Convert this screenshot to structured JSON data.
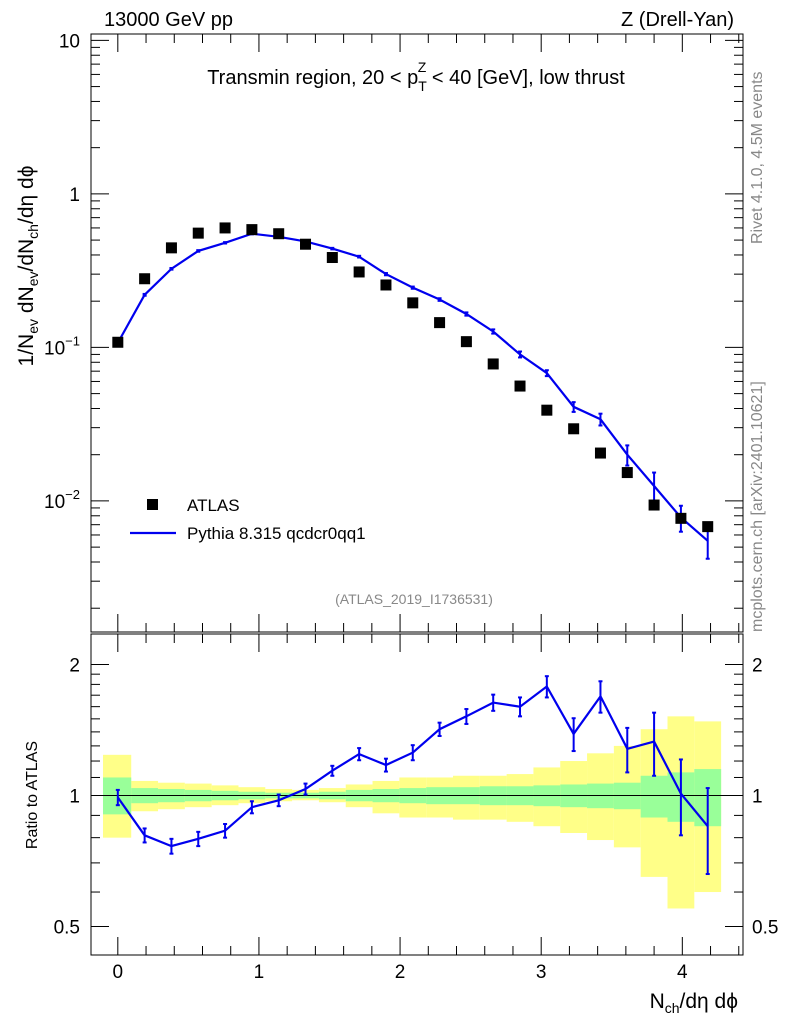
{
  "header": {
    "left": "13000 GeV pp",
    "right": "Z (Drell-Yan)"
  },
  "side": {
    "rivet": "Rivet 4.1.0,  4.5M events",
    "mcplots": "mcplots.cern.ch [arXiv:2401.10621]"
  },
  "colors": {
    "data": "#000000",
    "mc": "#0000ee",
    "band_inner": "#99ff99",
    "band_outer": "#ffff88"
  },
  "chart_data": [
    {
      "type": "scatter",
      "name": "main",
      "title_parts": {
        "before": "Transmin region, 20 < p",
        "sub": "T",
        "sup": "Z",
        "after": " < 40 [GeV], low thrust"
      },
      "ylabel_parts": {
        "a": "1/N",
        "a_sub": "ev",
        "b": " dN",
        "b_sub": "ev",
        "c": "/dN",
        "c_sub": "ch",
        "d": "/dη dϕ"
      },
      "yscale": "log",
      "ylim": [
        0.0014,
        11
      ],
      "yticks": [
        {
          "value": 0.01,
          "base": "10",
          "exp": "−2"
        },
        {
          "value": 0.1,
          "base": "10",
          "exp": "−1"
        },
        {
          "value": 1,
          "base": "1",
          "exp": ""
        },
        {
          "value": 10,
          "base": "10",
          "exp": ""
        }
      ],
      "xlim": [
        -0.19,
        4.43
      ],
      "legend": {
        "position": "bottom-left",
        "data_label": "ATLAS",
        "mc_label": "Pythia 8.315 qcdcr0qq1"
      },
      "watermark": "(ATLAS_2019_I1736531)",
      "x": [
        0,
        0.19,
        0.38,
        0.57,
        0.76,
        0.95,
        1.14,
        1.33,
        1.52,
        1.71,
        1.9,
        2.09,
        2.28,
        2.47,
        2.66,
        2.85,
        3.04,
        3.23,
        3.42,
        3.61,
        3.8,
        3.99,
        4.18
      ],
      "series": [
        {
          "name": "ATLAS",
          "style": "markers",
          "values": [
            0.108,
            0.28,
            0.445,
            0.555,
            0.6,
            0.585,
            0.55,
            0.47,
            0.385,
            0.31,
            0.255,
            0.195,
            0.145,
            0.109,
            0.078,
            0.056,
            0.039,
            0.0295,
            0.0205,
            0.0153,
            0.0094,
            0.0077,
            0.0068
          ]
        },
        {
          "name": "Pythia 8.315 qcdcr0qq1",
          "style": "line",
          "values": [
            0.107,
            0.22,
            0.325,
            0.425,
            0.48,
            0.55,
            0.525,
            0.49,
            0.44,
            0.39,
            0.3,
            0.245,
            0.205,
            0.165,
            0.127,
            0.09,
            0.068,
            0.041,
            0.034,
            0.02,
            0.0125,
            0.0078,
            0.0055
          ],
          "err_low": [
            0.002,
            0.003,
            0.004,
            0.005,
            0.005,
            0.005,
            0.005,
            0.005,
            0.005,
            0.005,
            0.005,
            0.004,
            0.004,
            0.004,
            0.004,
            0.004,
            0.003,
            0.003,
            0.003,
            0.003,
            0.003,
            0.0015,
            0.0013
          ],
          "err_high": [
            0.002,
            0.003,
            0.004,
            0.005,
            0.005,
            0.005,
            0.005,
            0.005,
            0.005,
            0.005,
            0.005,
            0.004,
            0.004,
            0.004,
            0.004,
            0.004,
            0.003,
            0.003,
            0.003,
            0.003,
            0.0028,
            0.0015,
            0.0015
          ]
        }
      ]
    },
    {
      "type": "line",
      "name": "ratio",
      "ylabel": "Ratio to ATLAS",
      "yscale": "log",
      "ylim": [
        0.43,
        2.35
      ],
      "yticks": [
        {
          "value": 0.5,
          "label": "0.5"
        },
        {
          "value": 1,
          "label": "1"
        },
        {
          "value": 2,
          "label": "2"
        }
      ],
      "xlim": [
        -0.19,
        4.43
      ],
      "xlabel_parts": {
        "a": "N",
        "a_sub": "ch",
        "b": "/dη dϕ"
      },
      "xticks": [
        0,
        1,
        2,
        3,
        4
      ],
      "x": [
        0,
        0.19,
        0.38,
        0.57,
        0.76,
        0.95,
        1.14,
        1.33,
        1.52,
        1.71,
        1.9,
        2.09,
        2.28,
        2.47,
        2.66,
        2.85,
        3.04,
        3.23,
        3.42,
        3.61,
        3.8,
        3.99,
        4.18
      ],
      "band_edges": [
        -0.105,
        0.095,
        0.285,
        0.475,
        0.665,
        0.855,
        1.045,
        1.235,
        1.425,
        1.615,
        1.805,
        1.995,
        2.185,
        2.375,
        2.565,
        2.755,
        2.945,
        3.135,
        3.325,
        3.515,
        3.705,
        3.895,
        4.085,
        4.275
      ],
      "band_inner": [
        [
          0.905,
          1.1
        ],
        [
          0.96,
          1.04
        ],
        [
          0.965,
          1.035
        ],
        [
          0.97,
          1.03
        ],
        [
          0.975,
          1.025
        ],
        [
          0.98,
          1.02
        ],
        [
          0.985,
          1.015
        ],
        [
          0.985,
          1.015
        ],
        [
          0.98,
          1.02
        ],
        [
          0.97,
          1.03
        ],
        [
          0.965,
          1.035
        ],
        [
          0.96,
          1.04
        ],
        [
          0.955,
          1.045
        ],
        [
          0.955,
          1.045
        ],
        [
          0.95,
          1.05
        ],
        [
          0.95,
          1.05
        ],
        [
          0.945,
          1.055
        ],
        [
          0.94,
          1.06
        ],
        [
          0.935,
          1.065
        ],
        [
          0.93,
          1.07
        ],
        [
          0.89,
          1.11
        ],
        [
          0.87,
          1.13
        ],
        [
          0.85,
          1.15
        ]
      ],
      "band_outer": [
        [
          0.8,
          1.24
        ],
        [
          0.92,
          1.08
        ],
        [
          0.93,
          1.07
        ],
        [
          0.94,
          1.065
        ],
        [
          0.95,
          1.055
        ],
        [
          0.96,
          1.045
        ],
        [
          0.97,
          1.035
        ],
        [
          0.975,
          1.03
        ],
        [
          0.965,
          1.04
        ],
        [
          0.94,
          1.06
        ],
        [
          0.91,
          1.08
        ],
        [
          0.89,
          1.1
        ],
        [
          0.89,
          1.1
        ],
        [
          0.88,
          1.11
        ],
        [
          0.88,
          1.11
        ],
        [
          0.87,
          1.12
        ],
        [
          0.85,
          1.16
        ],
        [
          0.82,
          1.2
        ],
        [
          0.79,
          1.25
        ],
        [
          0.76,
          1.3
        ],
        [
          0.65,
          1.42
        ],
        [
          0.55,
          1.52
        ],
        [
          0.6,
          1.48
        ]
      ],
      "series": [
        {
          "name": "MC / data",
          "values": [
            0.99,
            0.81,
            0.765,
            0.795,
            0.83,
            0.94,
            0.975,
            1.035,
            1.14,
            1.245,
            1.175,
            1.255,
            1.42,
            1.52,
            1.635,
            1.6,
            1.78,
            1.385,
            1.69,
            1.28,
            1.33,
            1.01,
            0.85
          ],
          "err": [
            0.04,
            0.03,
            0.03,
            0.03,
            0.03,
            0.03,
            0.03,
            0.03,
            0.03,
            0.04,
            0.04,
            0.05,
            0.05,
            0.06,
            0.07,
            0.08,
            0.1,
            0.12,
            0.14,
            0.15,
            0.22,
            0.2,
            0.19
          ]
        }
      ]
    }
  ]
}
